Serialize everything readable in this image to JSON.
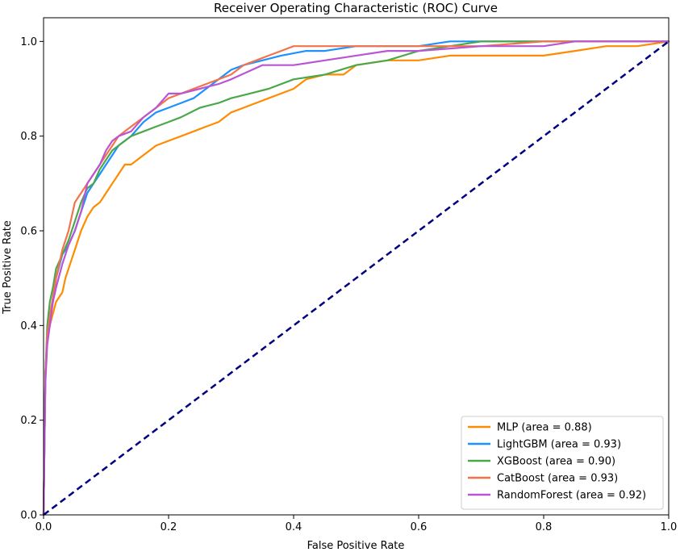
{
  "chart_data": {
    "type": "line",
    "title": "Receiver Operating Characteristic (ROC) Curve",
    "xlabel": "False Positive Rate",
    "ylabel": "True Positive Rate",
    "xlim": [
      0.0,
      1.0
    ],
    "ylim": [
      0.0,
      1.05
    ],
    "xticks": [
      0.0,
      0.2,
      0.4,
      0.6,
      0.8,
      1.0
    ],
    "yticks": [
      0.0,
      0.2,
      0.4,
      0.6,
      0.8,
      1.0
    ],
    "xtick_labels": [
      "0.0",
      "0.2",
      "0.4",
      "0.6",
      "0.8",
      "1.0"
    ],
    "ytick_labels": [
      "0.0",
      "0.2",
      "0.4",
      "0.6",
      "0.8",
      "1.0"
    ],
    "grid": false,
    "legend_position": "bottom-right",
    "series": [
      {
        "name": "MLP",
        "label": "MLP (area = 0.88)",
        "auc": 0.88,
        "color": "#ff8c00",
        "x": [
          0.0,
          0.003,
          0.005,
          0.008,
          0.012,
          0.016,
          0.02,
          0.025,
          0.03,
          0.035,
          0.04,
          0.045,
          0.05,
          0.06,
          0.07,
          0.08,
          0.09,
          0.1,
          0.11,
          0.12,
          0.13,
          0.14,
          0.15,
          0.16,
          0.18,
          0.2,
          0.22,
          0.24,
          0.26,
          0.28,
          0.3,
          0.32,
          0.34,
          0.36,
          0.38,
          0.4,
          0.42,
          0.45,
          0.48,
          0.5,
          0.55,
          0.6,
          0.65,
          0.7,
          0.75,
          0.8,
          0.85,
          0.9,
          0.95,
          1.0
        ],
        "y": [
          0.0,
          0.3,
          0.35,
          0.39,
          0.41,
          0.43,
          0.45,
          0.46,
          0.47,
          0.5,
          0.52,
          0.54,
          0.56,
          0.6,
          0.63,
          0.65,
          0.66,
          0.68,
          0.7,
          0.72,
          0.74,
          0.74,
          0.75,
          0.76,
          0.78,
          0.79,
          0.8,
          0.81,
          0.82,
          0.83,
          0.85,
          0.86,
          0.87,
          0.88,
          0.89,
          0.9,
          0.92,
          0.93,
          0.93,
          0.95,
          0.96,
          0.96,
          0.97,
          0.97,
          0.97,
          0.97,
          0.98,
          0.99,
          0.99,
          1.0
        ]
      },
      {
        "name": "LightGBM",
        "label": "LightGBM (area = 0.93)",
        "auc": 0.93,
        "color": "#1e90ff",
        "x": [
          0.0,
          0.003,
          0.006,
          0.01,
          0.015,
          0.02,
          0.03,
          0.04,
          0.05,
          0.06,
          0.07,
          0.08,
          0.09,
          0.1,
          0.11,
          0.12,
          0.13,
          0.14,
          0.16,
          0.18,
          0.2,
          0.22,
          0.24,
          0.26,
          0.28,
          0.3,
          0.32,
          0.35,
          0.38,
          0.42,
          0.45,
          0.5,
          0.55,
          0.6,
          0.65,
          0.7,
          0.75,
          0.8,
          0.85,
          0.9,
          1.0
        ],
        "y": [
          0.0,
          0.3,
          0.38,
          0.42,
          0.45,
          0.5,
          0.55,
          0.57,
          0.6,
          0.64,
          0.68,
          0.7,
          0.72,
          0.74,
          0.76,
          0.78,
          0.79,
          0.8,
          0.83,
          0.85,
          0.86,
          0.87,
          0.88,
          0.9,
          0.92,
          0.94,
          0.95,
          0.96,
          0.97,
          0.98,
          0.98,
          0.99,
          0.99,
          0.99,
          1.0,
          1.0,
          1.0,
          1.0,
          1.0,
          1.0,
          1.0
        ]
      },
      {
        "name": "XGBoost",
        "label": "XGBoost (area = 0.90)",
        "auc": 0.9,
        "color": "#4aa84a",
        "x": [
          0.0,
          0.003,
          0.006,
          0.01,
          0.015,
          0.02,
          0.03,
          0.04,
          0.05,
          0.06,
          0.07,
          0.08,
          0.09,
          0.1,
          0.11,
          0.12,
          0.13,
          0.14,
          0.16,
          0.18,
          0.2,
          0.22,
          0.25,
          0.28,
          0.3,
          0.33,
          0.36,
          0.4,
          0.45,
          0.5,
          0.55,
          0.6,
          0.65,
          0.7,
          0.75,
          0.8,
          0.85,
          0.9,
          1.0
        ],
        "y": [
          0.0,
          0.3,
          0.4,
          0.45,
          0.48,
          0.52,
          0.55,
          0.58,
          0.62,
          0.66,
          0.69,
          0.7,
          0.73,
          0.75,
          0.77,
          0.78,
          0.79,
          0.8,
          0.81,
          0.82,
          0.83,
          0.84,
          0.86,
          0.87,
          0.88,
          0.89,
          0.9,
          0.92,
          0.93,
          0.95,
          0.96,
          0.98,
          0.99,
          1.0,
          1.0,
          1.0,
          1.0,
          1.0,
          1.0
        ]
      },
      {
        "name": "CatBoost",
        "label": "CatBoost (area = 0.93)",
        "auc": 0.93,
        "color": "#f4734a",
        "x": [
          0.0,
          0.003,
          0.006,
          0.01,
          0.015,
          0.02,
          0.03,
          0.04,
          0.05,
          0.06,
          0.07,
          0.08,
          0.09,
          0.1,
          0.11,
          0.12,
          0.13,
          0.14,
          0.16,
          0.18,
          0.2,
          0.22,
          0.24,
          0.26,
          0.28,
          0.3,
          0.32,
          0.34,
          0.36,
          0.38,
          0.4,
          0.45,
          0.5,
          0.6,
          0.7,
          0.8,
          0.9,
          1.0
        ],
        "y": [
          0.0,
          0.3,
          0.38,
          0.42,
          0.46,
          0.5,
          0.56,
          0.6,
          0.66,
          0.68,
          0.7,
          0.72,
          0.74,
          0.76,
          0.78,
          0.8,
          0.81,
          0.82,
          0.84,
          0.86,
          0.88,
          0.89,
          0.9,
          0.91,
          0.92,
          0.93,
          0.95,
          0.96,
          0.97,
          0.98,
          0.99,
          0.99,
          0.99,
          0.99,
          0.99,
          1.0,
          1.0,
          1.0
        ]
      },
      {
        "name": "RandomForest",
        "label": "RandomForest (area = 0.92)",
        "auc": 0.92,
        "color": "#ba55d3",
        "x": [
          0.0,
          0.003,
          0.006,
          0.01,
          0.015,
          0.02,
          0.03,
          0.04,
          0.05,
          0.06,
          0.07,
          0.08,
          0.09,
          0.1,
          0.11,
          0.12,
          0.14,
          0.16,
          0.18,
          0.2,
          0.22,
          0.25,
          0.28,
          0.3,
          0.35,
          0.4,
          0.45,
          0.5,
          0.55,
          0.6,
          0.7,
          0.8,
          0.85,
          0.9,
          1.0
        ],
        "y": [
          0.0,
          0.28,
          0.36,
          0.4,
          0.45,
          0.48,
          0.53,
          0.57,
          0.6,
          0.64,
          0.7,
          0.72,
          0.74,
          0.77,
          0.79,
          0.8,
          0.81,
          0.84,
          0.86,
          0.89,
          0.89,
          0.9,
          0.91,
          0.92,
          0.95,
          0.95,
          0.96,
          0.97,
          0.98,
          0.98,
          0.99,
          0.99,
          1.0,
          1.0,
          1.0
        ]
      }
    ],
    "reference_line": {
      "name": "chance",
      "color": "#000080",
      "x": [
        0.0,
        1.0
      ],
      "y": [
        0.0,
        1.0
      ],
      "style": "dashed"
    }
  }
}
